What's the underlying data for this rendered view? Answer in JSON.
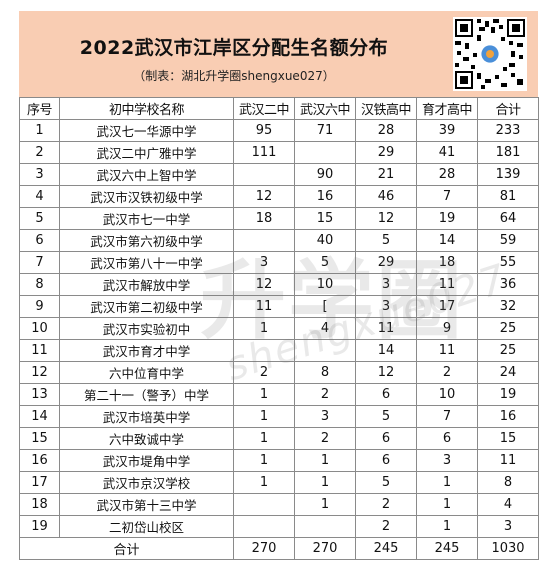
{
  "header": {
    "title": "2022武汉市江岸区分配生名额分布",
    "subtitle": "（制表：湖北升学圈shengxue027）",
    "qr_icon": "qr-code-icon"
  },
  "table": {
    "columns": [
      "序号",
      "初中学校名称",
      "武汉二中",
      "武汉六中",
      "汉铁高中",
      "育才高中",
      "合计"
    ],
    "rows": [
      [
        "1",
        "武汉七一华源中学",
        "95",
        "71",
        "28",
        "39",
        "233"
      ],
      [
        "2",
        "武汉二中广雅中学",
        "111",
        "",
        "29",
        "41",
        "181"
      ],
      [
        "3",
        "武汉六中上智中学",
        "",
        "90",
        "21",
        "28",
        "139"
      ],
      [
        "4",
        "武汉市汉铁初级中学",
        "12",
        "16",
        "46",
        "7",
        "81"
      ],
      [
        "5",
        "武汉市七一中学",
        "18",
        "15",
        "12",
        "19",
        "64"
      ],
      [
        "6",
        "武汉市第六初级中学",
        "",
        "40",
        "5",
        "14",
        "59"
      ],
      [
        "7",
        "武汉市第八十一中学",
        "3",
        "5",
        "29",
        "18",
        "55"
      ],
      [
        "8",
        "武汉市解放中学",
        "12",
        "10",
        "3",
        "11",
        "36"
      ],
      [
        "9",
        "武汉市第二初级中学",
        "11",
        "[",
        "3",
        "17",
        "32"
      ],
      [
        "10",
        "武汉市实验初中",
        "1",
        "4",
        "11",
        "9",
        "25"
      ],
      [
        "11",
        "武汉市育才中学",
        "",
        "",
        "14",
        "11",
        "25"
      ],
      [
        "12",
        "六中位育中学",
        "2",
        "8",
        "12",
        "2",
        "24"
      ],
      [
        "13",
        "第二十一（警予）中学",
        "1",
        "2",
        "6",
        "10",
        "19"
      ],
      [
        "14",
        "武汉市培英中学",
        "1",
        "3",
        "5",
        "7",
        "16"
      ],
      [
        "15",
        "六中致诚中学",
        "1",
        "2",
        "6",
        "6",
        "15"
      ],
      [
        "16",
        "武汉市堤角中学",
        "1",
        "1",
        "6",
        "3",
        "11"
      ],
      [
        "17",
        "武汉市京汉学校",
        "1",
        "1",
        "5",
        "1",
        "8"
      ],
      [
        "18",
        "武汉市第十三中学",
        "",
        "1",
        "2",
        "1",
        "4"
      ],
      [
        "19",
        "二初岱山校区",
        "",
        "",
        "2",
        "1",
        "3"
      ]
    ],
    "total": [
      "合计",
      "270",
      "270",
      "245",
      "245",
      "1030"
    ]
  },
  "watermark": {
    "main": "升学圈",
    "sub": "shengxue027"
  }
}
